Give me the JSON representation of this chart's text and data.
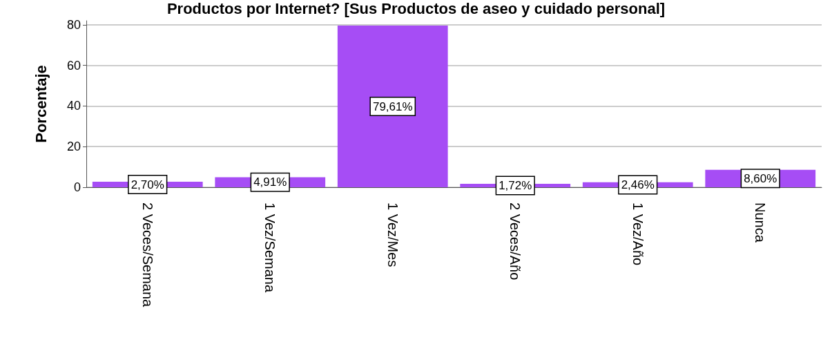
{
  "chart_data": {
    "type": "bar",
    "title": "Productos por Internet? [Sus Productos de aseo y cuidado personal]",
    "ylabel": "Porcentaje",
    "categories": [
      "2 Veces/Semana",
      "1 Vez/Semana",
      "1 Vez/Mes",
      "2 Veces/Año",
      "1 Vez/Año",
      "Nunca"
    ],
    "values": [
      2.7,
      4.91,
      79.61,
      1.72,
      2.46,
      8.6
    ],
    "value_labels": [
      "2,70%",
      "4,91%",
      "79,61%",
      "1,72%",
      "2,46%",
      "8,60%"
    ],
    "color": "#a64df5",
    "ylim": [
      0,
      82
    ],
    "yticks": [
      0,
      20,
      40,
      60,
      80
    ],
    "grid": "y"
  }
}
